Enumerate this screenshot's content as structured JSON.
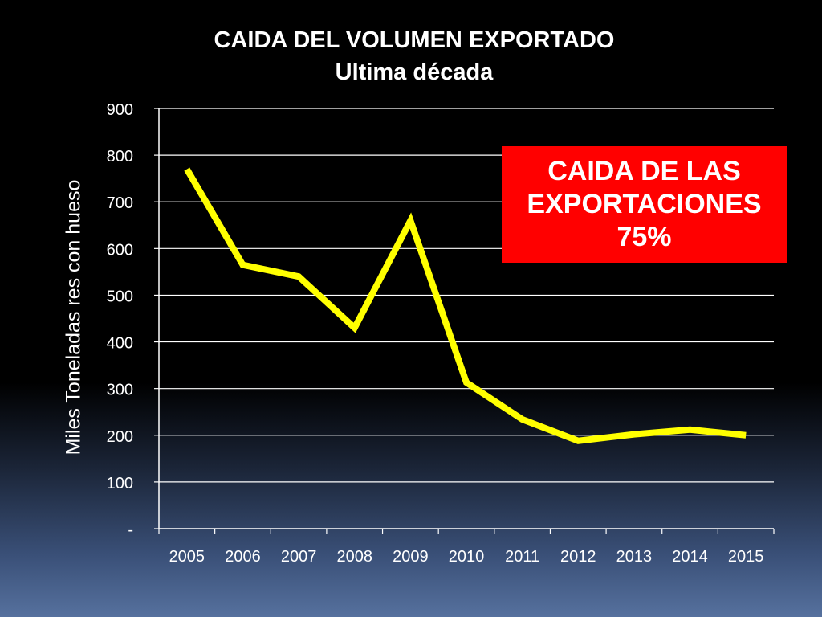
{
  "slide": {
    "title_line1": "CAIDA DEL VOLUMEN EXPORTADO",
    "title_line2": "Ultima década",
    "callout": {
      "line1": "CAIDA DE LAS",
      "line2": "EXPORTACIONES",
      "line3": "75%",
      "background": "#ff0000"
    }
  },
  "chart_data": {
    "type": "line",
    "title": "CAIDA DEL VOLUMEN EXPORTADO",
    "subtitle": "Ultima década",
    "xlabel": "",
    "ylabel": "Miles Toneladas res con hueso",
    "categories": [
      "2005",
      "2006",
      "2007",
      "2008",
      "2009",
      "2010",
      "2011",
      "2012",
      "2013",
      "2014",
      "2015"
    ],
    "series": [
      {
        "values": [
          770,
          565,
          540,
          430,
          660,
          313,
          234,
          188,
          202,
          212,
          200
        ],
        "color": "#ffff00"
      }
    ],
    "ylim": [
      0,
      900
    ],
    "yticks": [
      0,
      100,
      200,
      300,
      400,
      500,
      600,
      700,
      800,
      900
    ],
    "ytick_labels": [
      "-",
      "100",
      "200",
      "300",
      "400",
      "500",
      "600",
      "700",
      "800",
      "900"
    ],
    "grid": true,
    "legend": "none"
  }
}
